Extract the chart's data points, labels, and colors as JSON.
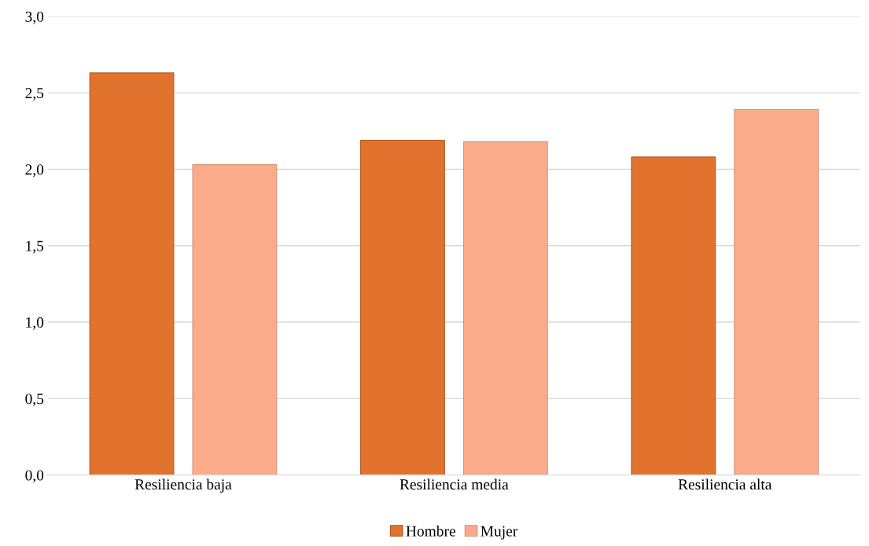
{
  "chart_data": {
    "type": "bar",
    "categories": [
      "Resiliencia baja",
      "Resiliencia media",
      "Resiliencia alta"
    ],
    "series": [
      {
        "name": "Hombre",
        "color": "#e2732f",
        "values": [
          2.63,
          2.19,
          2.08
        ]
      },
      {
        "name": "Mujer",
        "color": "#f9ab8a",
        "values": [
          2.03,
          2.18,
          2.39
        ]
      }
    ],
    "ylim": [
      0,
      3
    ],
    "yticks": [
      {
        "value": 0,
        "label": "0,0"
      },
      {
        "value": 0.5,
        "label": "0,5"
      },
      {
        "value": 1,
        "label": "1,0"
      },
      {
        "value": 1.5,
        "label": "1,5"
      },
      {
        "value": 2,
        "label": "2,0"
      },
      {
        "value": 2.5,
        "label": "2,5"
      },
      {
        "value": 3,
        "label": "3,0"
      }
    ],
    "grid": "y",
    "legend": "bottom"
  }
}
